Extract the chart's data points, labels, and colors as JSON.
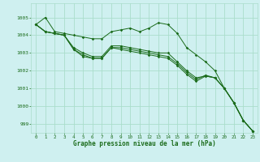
{
  "xlabel": "Graphe pression niveau de la mer (hPa)",
  "xlim": [
    -0.5,
    23.5
  ],
  "ylim": [
    998.5,
    1005.8
  ],
  "yticks": [
    999,
    1000,
    1001,
    1002,
    1003,
    1004,
    1005
  ],
  "xticks": [
    0,
    1,
    2,
    3,
    4,
    5,
    6,
    7,
    8,
    9,
    10,
    11,
    12,
    13,
    14,
    15,
    16,
    17,
    18,
    19,
    20,
    21,
    22,
    23
  ],
  "bg_color": "#cff0f0",
  "grid_color": "#aaddcc",
  "line_color": "#1a6b1a",
  "series": [
    [
      1004.6,
      1005.0,
      1004.2,
      1004.1,
      1004.0,
      1003.9,
      1003.8,
      1003.8,
      1004.2,
      1004.3,
      1004.4,
      1004.2,
      1004.4,
      1004.7,
      1004.6,
      1004.1,
      1003.3,
      1002.9,
      1002.5,
      1002.0,
      1001.0,
      1000.2,
      999.2,
      998.6
    ],
    [
      1004.6,
      1004.2,
      1004.1,
      1004.0,
      1003.3,
      1003.0,
      1002.8,
      1002.8,
      1003.4,
      1003.4,
      1003.3,
      1003.2,
      1003.1,
      1003.0,
      1003.0,
      1002.5,
      1002.0,
      1001.6,
      1001.7,
      1001.6,
      1001.0,
      1000.2,
      999.2,
      998.6
    ],
    [
      1004.6,
      1004.2,
      1004.1,
      1004.0,
      1003.2,
      1002.9,
      1002.7,
      1002.7,
      1003.3,
      1003.3,
      1003.2,
      1003.1,
      1003.0,
      1002.9,
      1002.8,
      1002.4,
      1001.9,
      1001.5,
      1001.75,
      1001.6,
      1001.0,
      1000.2,
      999.2,
      998.6
    ],
    [
      1004.6,
      1004.2,
      1004.1,
      1004.0,
      1003.2,
      1002.8,
      1002.7,
      1002.7,
      1003.3,
      1003.2,
      1003.1,
      1003.0,
      1002.9,
      1002.8,
      1002.7,
      1002.3,
      1001.8,
      1001.4,
      1001.7,
      1001.6,
      1001.0,
      1000.2,
      999.2,
      998.6
    ]
  ]
}
